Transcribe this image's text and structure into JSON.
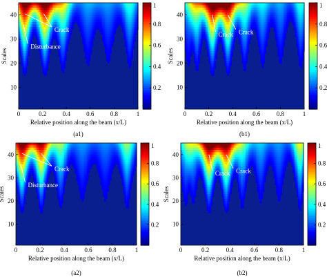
{
  "figure": {
    "colormap": "jet",
    "panel_bg": "#0a1f8f",
    "colorbar_ticks": [
      "0.2",
      "0.4",
      "0.6",
      "0.8",
      "1"
    ],
    "x_ticks": [
      "0",
      "0.2",
      "0.4",
      "0.6",
      "0.8",
      "1"
    ],
    "y_ticks": [
      "10",
      "20",
      "30",
      "40"
    ],
    "xlabel": "Relative position along the beam (x/L)",
    "ylabel": "Scales"
  },
  "chart_data": [
    {
      "type": "heatmap",
      "panel_label": "(a1)",
      "xlabel": "Relative position along the beam (x/L)",
      "ylabel": "Scales",
      "xlim": [
        0,
        1
      ],
      "ylim": [
        1,
        45
      ],
      "clim": [
        0,
        1
      ],
      "colorbar_ticks": [
        0.2,
        0.4,
        0.6,
        0.8,
        1
      ],
      "peaks": [
        {
          "x": 0.05,
          "amplitude": 1.0,
          "width": 0.045
        },
        {
          "x": 0.22,
          "amplitude": 1.0,
          "width": 0.05
        },
        {
          "x": 0.37,
          "amplitude": 0.55,
          "width": 0.045
        },
        {
          "x": 0.58,
          "amplitude": 0.22,
          "width": 0.05
        },
        {
          "x": 0.75,
          "amplitude": 0.2,
          "width": 0.05
        },
        {
          "x": 0.93,
          "amplitude": 0.35,
          "width": 0.04
        }
      ],
      "annotations": [
        {
          "text": "Crack",
          "point": [
            0.21,
            40.5
          ],
          "label_at": [
            0.3,
            33
          ]
        },
        {
          "text": "Crack",
          "point": [
            0.05,
            40.5
          ],
          "label_at": [
            0.3,
            33
          ]
        },
        {
          "text": "Disturbance",
          "point": [
            0.04,
            36
          ],
          "label_at": [
            0.1,
            26
          ]
        }
      ]
    },
    {
      "type": "heatmap",
      "panel_label": "(b1)",
      "xlabel": "Relative position along the beam (x/L)",
      "ylabel": "Scales",
      "xlim": [
        0,
        1
      ],
      "ylim": [
        1,
        45
      ],
      "clim": [
        0,
        1
      ],
      "colorbar_ticks": [
        0.2,
        0.4,
        0.6,
        0.8,
        1
      ],
      "peaks": [
        {
          "x": 0.03,
          "amplitude": 0.25,
          "width": 0.04
        },
        {
          "x": 0.1,
          "amplitude": 0.5,
          "width": 0.04
        },
        {
          "x": 0.23,
          "amplitude": 1.0,
          "width": 0.045
        },
        {
          "x": 0.36,
          "amplitude": 0.95,
          "width": 0.045
        },
        {
          "x": 0.5,
          "amplitude": 0.45,
          "width": 0.04
        },
        {
          "x": 0.65,
          "amplitude": 0.3,
          "width": 0.04
        },
        {
          "x": 0.8,
          "amplitude": 0.22,
          "width": 0.04
        },
        {
          "x": 0.97,
          "amplitude": 0.35,
          "width": 0.035
        }
      ],
      "annotations": [
        {
          "text": "Crack",
          "point": [
            0.23,
            40
          ],
          "label_at": [
            0.28,
            31
          ]
        },
        {
          "text": "Crack",
          "point": [
            0.36,
            40
          ],
          "label_at": [
            0.45,
            32
          ]
        }
      ]
    },
    {
      "type": "heatmap",
      "panel_label": "(a2)",
      "xlabel": "Relative position along the beam (x/L)",
      "ylabel": "Scales",
      "xlim": [
        0,
        1
      ],
      "ylim": [
        1,
        45
      ],
      "clim": [
        0,
        1
      ],
      "colorbar_ticks": [
        0.2,
        0.4,
        0.6,
        0.8,
        1
      ],
      "peaks": [
        {
          "x": 0.05,
          "amplitude": 1.0,
          "width": 0.045
        },
        {
          "x": 0.21,
          "amplitude": 0.9,
          "width": 0.045
        },
        {
          "x": 0.37,
          "amplitude": 0.45,
          "width": 0.04
        },
        {
          "x": 0.55,
          "amplitude": 0.2,
          "width": 0.05
        },
        {
          "x": 0.74,
          "amplitude": 0.18,
          "width": 0.05
        },
        {
          "x": 0.92,
          "amplitude": 0.45,
          "width": 0.04
        }
      ],
      "annotations": [
        {
          "text": "Crack",
          "point": [
            0.21,
            40.5
          ],
          "label_at": [
            0.32,
            33
          ]
        },
        {
          "text": "Crack",
          "point": [
            0.05,
            40.5
          ],
          "label_at": [
            0.32,
            33
          ]
        },
        {
          "text": "Disturbance",
          "point": [
            0.04,
            36
          ],
          "label_at": [
            0.1,
            26
          ]
        }
      ]
    },
    {
      "type": "heatmap",
      "panel_label": "(b2)",
      "xlabel": "Relative position along the beam (x/L)",
      "ylabel": "Scales",
      "xlim": [
        0,
        1
      ],
      "ylim": [
        1,
        45
      ],
      "clim": [
        0,
        1
      ],
      "colorbar_ticks": [
        0.2,
        0.4,
        0.6,
        0.8,
        1
      ],
      "peaks": [
        {
          "x": 0.04,
          "amplitude": 0.3,
          "width": 0.04
        },
        {
          "x": 0.1,
          "amplitude": 0.3,
          "width": 0.04
        },
        {
          "x": 0.23,
          "amplitude": 1.0,
          "width": 0.045
        },
        {
          "x": 0.37,
          "amplitude": 0.95,
          "width": 0.045
        },
        {
          "x": 0.5,
          "amplitude": 0.4,
          "width": 0.04
        },
        {
          "x": 0.65,
          "amplitude": 0.25,
          "width": 0.04
        },
        {
          "x": 0.8,
          "amplitude": 0.2,
          "width": 0.04
        },
        {
          "x": 0.97,
          "amplitude": 0.55,
          "width": 0.035
        }
      ],
      "annotations": [
        {
          "text": "Crack",
          "point": [
            0.23,
            40
          ],
          "label_at": [
            0.28,
            31
          ]
        },
        {
          "text": "Crack",
          "point": [
            0.37,
            40
          ],
          "label_at": [
            0.45,
            32
          ]
        }
      ]
    }
  ]
}
